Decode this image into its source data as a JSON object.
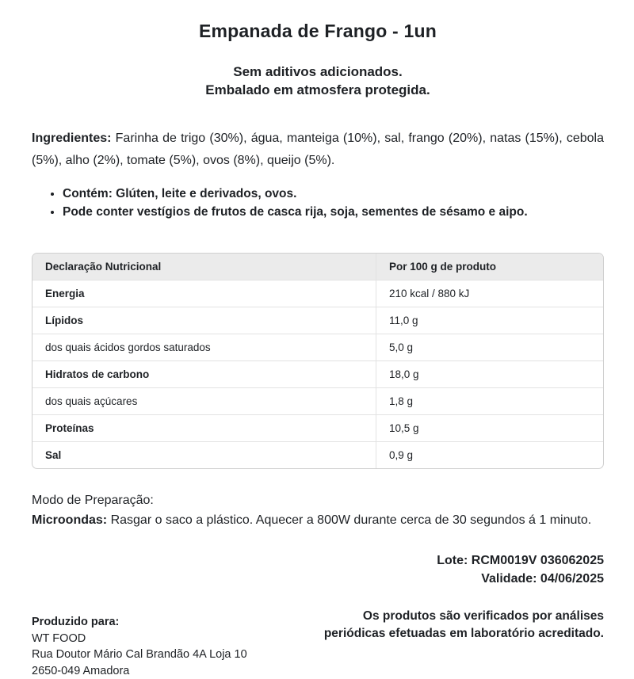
{
  "title": "Empanada de Frango - 1un",
  "subtitle": {
    "line1": "Sem aditivos adicionados.",
    "line2": "Embalado em atmosfera protegida."
  },
  "ingredients": {
    "label": "Ingredientes:",
    "text": "Farinha de trigo (30%), água, manteiga (10%), sal, frango (20%), natas (15%), cebola (5%), alho (2%), tomate (5%), ovos (8%), queijo (5%)."
  },
  "allergens": {
    "items": [
      "Contém: Glúten, leite e derivados, ovos.",
      "Pode conter vestígios de frutos de casca rija, soja, sementes de sésamo e aipo."
    ]
  },
  "nutrition_table": {
    "headers": [
      "Declaração Nutricional",
      "Por 100 g de produto"
    ],
    "rows": [
      {
        "label": "Energia",
        "value": "210 kcal / 880 kJ",
        "bold": true
      },
      {
        "label": "Lípidos",
        "value": "11,0 g",
        "bold": true
      },
      {
        "label": "dos quais ácidos gordos saturados",
        "value": "5,0 g",
        "bold": false
      },
      {
        "label": "Hidratos de carbono",
        "value": "18,0 g",
        "bold": true
      },
      {
        "label": "dos quais açúcares",
        "value": "1,8 g",
        "bold": false
      },
      {
        "label": "Proteínas",
        "value": "10,5 g",
        "bold": true
      },
      {
        "label": "Sal",
        "value": "0,9 g",
        "bold": true
      }
    ]
  },
  "preparation": {
    "heading": "Modo de Preparação:",
    "method_label": "Microondas:",
    "method_text": "Rasgar o saco a plástico. Aquecer a 800W durante cerca de 30 segundos á 1 minuto."
  },
  "batch": {
    "lote": "Lote: RCM0019V 036062025",
    "validade": "Validade: 04/06/2025"
  },
  "producer": {
    "label": "Produzido para:",
    "name": "WT FOOD",
    "address_line1": "Rua Doutor Mário Cal Brandão 4A Loja 10",
    "address_line2": "2650-049 Amadora"
  },
  "verification": {
    "line1": "Os produtos são verificados por análises",
    "line2": "periódicas efetuadas em laboratório acreditado."
  }
}
